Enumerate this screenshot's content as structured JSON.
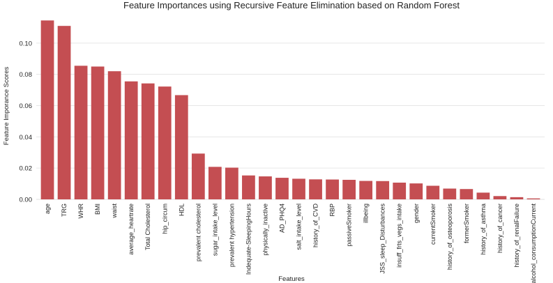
{
  "chart_data": {
    "type": "bar",
    "title": "Feature Importances using Recursive Feature Elimination based on Random Forest",
    "xlabel": "Features",
    "ylabel": "Feature Imporance Scores",
    "ylim": [
      0,
      0.12
    ],
    "yticks": [
      "0.00",
      "0.02",
      "0.04",
      "0.06",
      "0.08",
      "0.10"
    ],
    "grid": true,
    "bar_color": "#c44e52",
    "categories": [
      "age",
      "TRG",
      "WHR",
      "BMI",
      "waist",
      "average_heartrate",
      "Total Cholesterol",
      "hip_circum",
      "HDL",
      "prevalent cholesterol",
      "sugar_intake_level",
      "prevalent hypertension",
      "Indequate-SleepingHours",
      "physically_inactive",
      "AD_PHQ4",
      "salt_intake_level",
      "history_of_CVD",
      "RBP",
      "passiveSmoker",
      "illbeing",
      "JSS_sleep_Disturbances",
      "insuff_frts_vegs_intake",
      "gender",
      "currentSmoker",
      "history_of_osteoporosis",
      "formerSmoker",
      "history_of_asthma",
      "history_of_cancer",
      "history_of_renalFailure",
      "alcohol_consumptionCurrent"
    ],
    "values": [
      0.1145,
      0.111,
      0.0855,
      0.085,
      0.082,
      0.0755,
      0.0742,
      0.0722,
      0.0667,
      0.0293,
      0.0208,
      0.0203,
      0.0153,
      0.0147,
      0.0138,
      0.0132,
      0.0128,
      0.0127,
      0.0125,
      0.0118,
      0.0117,
      0.0107,
      0.0102,
      0.0087,
      0.0069,
      0.0066,
      0.0043,
      0.0021,
      0.0014,
      0.0006
    ]
  }
}
